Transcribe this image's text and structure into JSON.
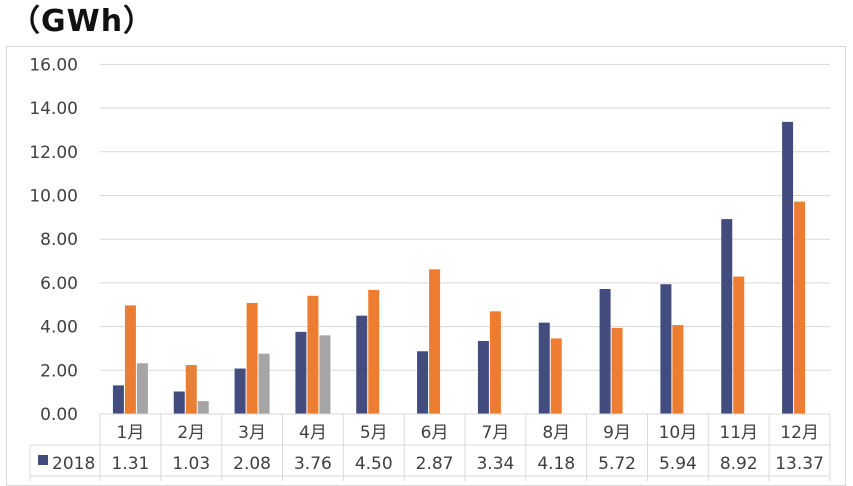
{
  "unit_label": "（GWh）",
  "chart_data": {
    "type": "bar",
    "title": "",
    "xlabel": "",
    "ylabel": "",
    "ylim": [
      0,
      16
    ],
    "yticks": [
      "0.00",
      "2.00",
      "4.00",
      "6.00",
      "8.00",
      "10.00",
      "12.00",
      "14.00",
      "16.00"
    ],
    "grid": true,
    "legend": "data-table",
    "categories": [
      "1月",
      "2月",
      "3月",
      "4月",
      "5月",
      "6月",
      "7月",
      "8月",
      "9月",
      "10月",
      "11月",
      "12月"
    ],
    "series": [
      {
        "name": "2018",
        "color": "#434c7e",
        "values": [
          1.31,
          1.03,
          2.08,
          3.76,
          4.5,
          2.87,
          3.34,
          4.18,
          5.72,
          5.94,
          8.92,
          13.37
        ],
        "labels": [
          "1.31",
          "1.03",
          "2.08",
          "3.76",
          "4.50",
          "2.87",
          "3.34",
          "4.18",
          "5.72",
          "5.94",
          "8.92",
          "13.37"
        ]
      },
      {
        "name": "",
        "color": "#ed7d31",
        "values": [
          4.97,
          2.24,
          5.08,
          5.41,
          5.68,
          6.62,
          4.7,
          3.46,
          3.94,
          4.07,
          6.29,
          9.72
        ],
        "labels": []
      },
      {
        "name": "",
        "color": "#a5a5a5",
        "values": [
          2.32,
          0.59,
          2.76,
          3.6,
          null,
          null,
          null,
          null,
          null,
          null,
          null,
          null
        ],
        "labels": []
      }
    ]
  }
}
